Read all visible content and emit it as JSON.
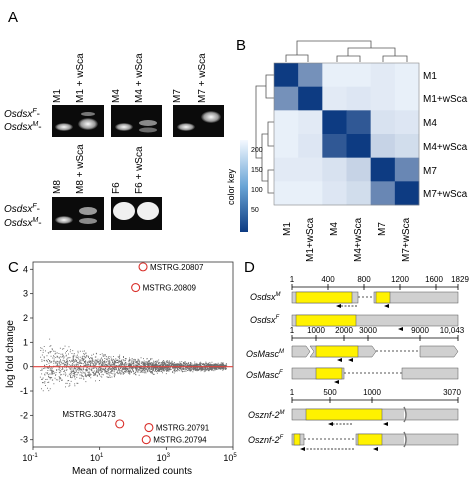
{
  "panels": {
    "A": {
      "letter": "A",
      "row1_lanes": [
        "M1",
        "M1 + wSca",
        "M4",
        "M4 + wSca",
        "M7",
        "M7 + wSca"
      ],
      "row2_lanes": [
        "M8",
        "M8 + wSca",
        "F6",
        "F6 + wSca"
      ],
      "band_label_F": "Osdsx",
      "band_label_F_sup": "F",
      "band_label_M": "Osdsx",
      "band_label_M_sup": "M"
    },
    "B": {
      "letter": "B",
      "labels": [
        "M1",
        "M1+wSca",
        "M4",
        "M4+wSca",
        "M7",
        "M7+wSca"
      ],
      "color_key_label": "color key",
      "color_key_ticks": [
        "200",
        "150",
        "100",
        "50"
      ],
      "colors": {
        "high": "#0d3b82",
        "low": "#f4f9ff"
      }
    },
    "C": {
      "letter": "C",
      "xlabel": "Mean of normalized counts",
      "ylabel": "log fold change",
      "xticks": [
        "10-1",
        "101",
        "103",
        "105"
      ],
      "yticks": [
        "4",
        "3",
        "2",
        "1",
        "0",
        "-1",
        "-2",
        "-3"
      ],
      "highlights": [
        "MSTRG.20807",
        "MSTRG.20809",
        "MSTRG.30473",
        "MSTRG.20791",
        "MSTRG.20794"
      ]
    },
    "D": {
      "letter": "D",
      "genes": [
        {
          "name": "Osdsx",
          "sup": "M",
          "axis_ticks": [
            "1",
            "400",
            "800",
            "1200",
            "1600",
            "1829"
          ]
        },
        {
          "name": "Osdsx",
          "sup": "F"
        },
        {
          "name": "OsMasc",
          "sup": "M",
          "axis_ticks": [
            "1",
            "1000",
            "2000",
            "3000",
            "9000",
            "10,043"
          ]
        },
        {
          "name": "OsMasc",
          "sup": "F"
        },
        {
          "name": "Osznf-2",
          "sup": "M",
          "axis_ticks": [
            "1",
            "500",
            "1000",
            "3070"
          ]
        },
        {
          "name": "Osznf-2",
          "sup": "F"
        }
      ],
      "colors": {
        "cds": "#fff200",
        "utr": "#d0d0d0"
      }
    }
  },
  "chart_data": [
    {
      "type": "heatmap",
      "rows": [
        "M1",
        "M1+wSca",
        "M4",
        "M4+wSca",
        "M7",
        "M7+wSca"
      ],
      "cols": [
        "M1",
        "M1+wSca",
        "M4",
        "M4+wSca",
        "M7",
        "M7+wSca"
      ],
      "values": [
        [
          1.0,
          0.55,
          0.05,
          0.05,
          0.08,
          0.05
        ],
        [
          0.55,
          1.0,
          0.08,
          0.1,
          0.08,
          0.05
        ],
        [
          0.05,
          0.08,
          1.0,
          0.85,
          0.12,
          0.1
        ],
        [
          0.05,
          0.1,
          0.85,
          1.0,
          0.2,
          0.15
        ],
        [
          0.08,
          0.08,
          0.12,
          0.2,
          1.0,
          0.6
        ],
        [
          0.05,
          0.05,
          0.1,
          0.15,
          0.6,
          1.0
        ]
      ],
      "color_key_range": [
        0,
        220
      ]
    },
    {
      "type": "scatter",
      "xlabel": "Mean of normalized counts",
      "ylabel": "log fold change",
      "x_scale": "log10",
      "xlim": [
        0.1,
        100000
      ],
      "ylim": [
        -3.3,
        4.3
      ],
      "highlighted_points": [
        {
          "label": "MSTRG.20807",
          "x": 200,
          "y": 4.1
        },
        {
          "label": "MSTRG.20809",
          "x": 120,
          "y": 3.25
        },
        {
          "label": "MSTRG.30473",
          "x": 40,
          "y": -2.35
        },
        {
          "label": "MSTRG.20791",
          "x": 300,
          "y": -2.5
        },
        {
          "label": "MSTRG.20794",
          "x": 250,
          "y": -3.0
        }
      ]
    }
  ]
}
